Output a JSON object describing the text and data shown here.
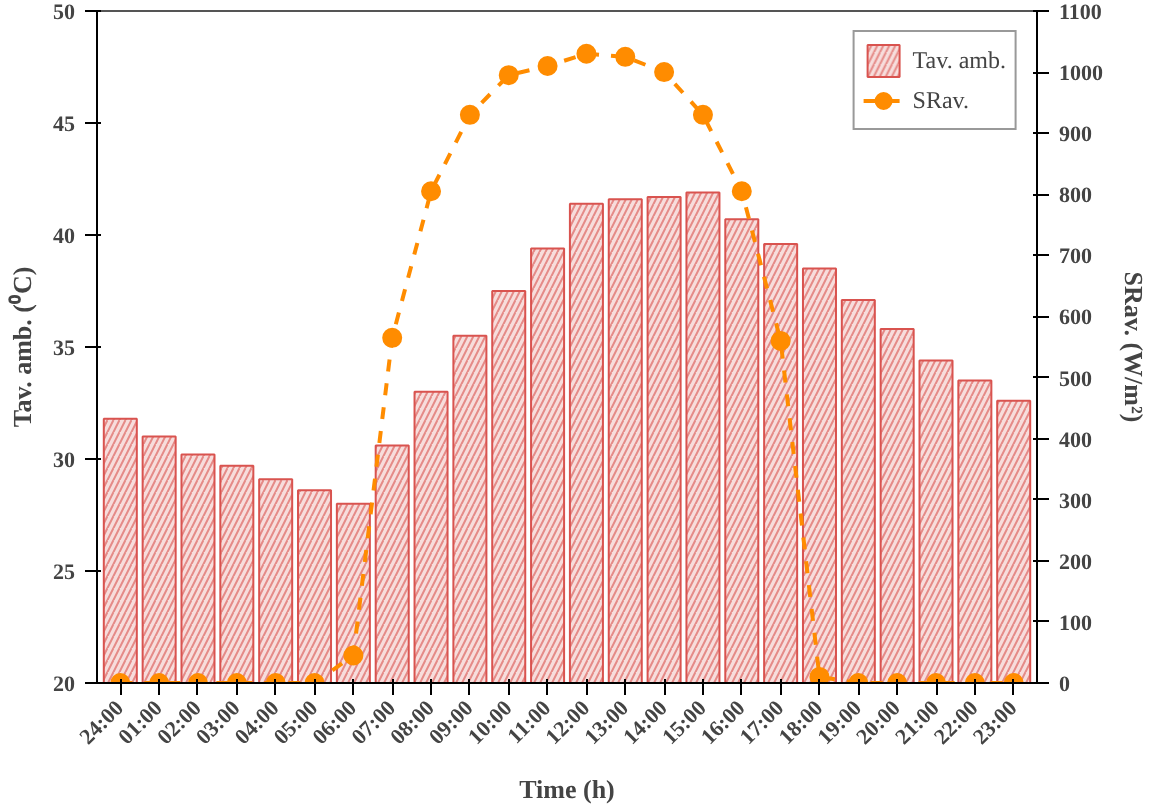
{
  "chart_data": {
    "type": "bar",
    "xlabel": "Time (h)",
    "ylabel": "Tav. amb. (⁰C)",
    "y2label": "SRav. (W/m²)",
    "categories": [
      "24:00",
      "01:00",
      "02:00",
      "03:00",
      "04:00",
      "05:00",
      "06:00",
      "07:00",
      "08:00",
      "09:00",
      "10:00",
      "11:00",
      "12:00",
      "13:00",
      "14:00",
      "15:00",
      "16:00",
      "17:00",
      "18:00",
      "19:00",
      "20:00",
      "21:00",
      "22:00",
      "23:00"
    ],
    "series": [
      {
        "name": "Tav. amb.",
        "color": "#d9534f",
        "values": [
          31.8,
          31.0,
          30.2,
          29.7,
          29.1,
          28.6,
          28.0,
          30.6,
          33.0,
          35.5,
          37.5,
          39.4,
          41.4,
          41.6,
          41.7,
          41.9,
          40.7,
          39.6,
          38.5,
          37.1,
          35.8,
          34.4,
          33.5,
          32.6
        ]
      },
      {
        "name": "SRav.",
        "type": "line",
        "axis": "y2",
        "color": "#ff8c00",
        "marker": "circle",
        "line_style": "dashed",
        "values": [
          0,
          0,
          0,
          0,
          0,
          0,
          45,
          565,
          805,
          930,
          995,
          1010,
          1030,
          1025,
          1000,
          930,
          805,
          560,
          10,
          0,
          0,
          0,
          0,
          0
        ]
      }
    ],
    "ylim": [
      20,
      50
    ],
    "yticks": [
      20,
      25,
      30,
      35,
      40,
      45,
      50
    ],
    "y2lim": [
      0,
      1100
    ],
    "y2ticks": [
      0,
      100,
      200,
      300,
      400,
      500,
      600,
      700,
      800,
      900,
      1000,
      1100
    ],
    "grid": false,
    "legend": "top right"
  }
}
